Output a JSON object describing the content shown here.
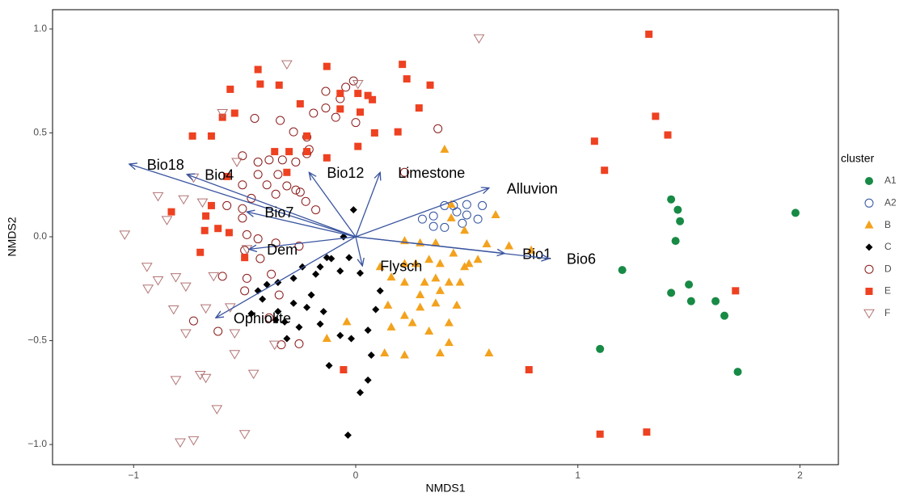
{
  "chart_data": {
    "type": "scatter",
    "xlabel": "NMDS1",
    "ylabel": "NMDS2",
    "legend_title": "cluster",
    "grid": false,
    "xlim": [
      -1.365,
      2.173
    ],
    "ylim": [
      -1.097,
      1.093
    ],
    "xticks": [
      {
        "value": -1,
        "label": "−1"
      },
      0,
      1,
      2
    ],
    "yticks": [
      {
        "value": -1,
        "label": "−1.0"
      },
      {
        "value": -0.5,
        "label": "−0.5"
      },
      {
        "value": 0,
        "label": "0.0"
      },
      {
        "value": 0.5,
        "label": "0.5"
      },
      {
        "value": 1,
        "label": "1.0"
      }
    ],
    "arrow_color": "#3a55a0",
    "arrows": [
      {
        "label": "Bio18",
        "x": -1.02,
        "y": 0.35
      },
      {
        "label": "Bio4",
        "x": -0.76,
        "y": 0.3
      },
      {
        "label": "Bio12",
        "x": -0.21,
        "y": 0.31
      },
      {
        "label": "Limestone",
        "x": 0.11,
        "y": 0.31
      },
      {
        "label": "Alluvion",
        "x": 0.6,
        "y": 0.235
      },
      {
        "label": "Bio7",
        "x": -0.49,
        "y": 0.12
      },
      {
        "label": "Dem",
        "x": -0.48,
        "y": -0.06
      },
      {
        "label": "Bio1",
        "x": 0.67,
        "y": -0.08
      },
      {
        "label": "Bio6",
        "x": 0.87,
        "y": -0.105
      },
      {
        "label": "Flysch",
        "x": 0.03,
        "y": -0.14
      },
      {
        "label": "Ophiolite",
        "x": -0.63,
        "y": -0.39
      }
    ],
    "series": [
      {
        "name": "A1",
        "color": "#178a45",
        "marker": "circle",
        "x": [
          1.42,
          1.45,
          1.46,
          1.44,
          1.5,
          1.42,
          1.51,
          1.62,
          1.66,
          1.72,
          1.2,
          1.1,
          1.98
        ],
        "y": [
          0.18,
          0.13,
          0.075,
          -0.02,
          -0.23,
          -0.27,
          -0.31,
          -0.31,
          -0.38,
          -0.65,
          -0.16,
          -0.54,
          0.115
        ]
      },
      {
        "name": "A2",
        "color": "#2d4f9e",
        "marker": "open-circle",
        "x": [
          0.3,
          0.35,
          0.4,
          0.44,
          0.5,
          0.57,
          0.35,
          0.4,
          0.455,
          0.5,
          0.48,
          0.55
        ],
        "y": [
          0.085,
          0.1,
          0.15,
          0.15,
          0.155,
          0.15,
          0.05,
          0.045,
          0.12,
          0.105,
          0.065,
          0.085
        ]
      },
      {
        "name": "B",
        "color": "#f3a21d",
        "marker": "triangle",
        "x": [
          0.4,
          0.43,
          0.63,
          0.43,
          0.49,
          0.59,
          0.69,
          0.79,
          0.22,
          0.27,
          0.33,
          0.38,
          0.44,
          0.49,
          0.55,
          0.11,
          0.16,
          0.22,
          0.31,
          0.36,
          0.42,
          0.29,
          0.38,
          0.47,
          0.51,
          0.29,
          0.36,
          0.455,
          0.22,
          0.145,
          0.16,
          0.255,
          0.33,
          0.42,
          0.42,
          0.38,
          0.22,
          0.13,
          -0.13,
          -0.04,
          0.6,
          0.29,
          0.22,
          0.36
        ],
        "y": [
          0.42,
          0.155,
          0.105,
          0.09,
          0.03,
          -0.035,
          -0.045,
          -0.065,
          -0.13,
          -0.13,
          -0.11,
          -0.13,
          -0.08,
          -0.145,
          -0.11,
          -0.145,
          -0.195,
          -0.22,
          -0.22,
          -0.2,
          -0.22,
          -0.28,
          -0.26,
          -0.22,
          -0.13,
          -0.34,
          -0.32,
          -0.33,
          -0.38,
          -0.33,
          -0.435,
          -0.415,
          -0.455,
          -0.415,
          -0.51,
          -0.56,
          -0.57,
          -0.56,
          -0.49,
          -0.41,
          -0.56,
          -0.03,
          -0.02,
          -0.03
        ]
      },
      {
        "name": "C",
        "color": "#000000",
        "marker": "diamond",
        "x": [
          -0.01,
          -0.055,
          -0.03,
          0.02,
          -0.07,
          -0.13,
          -0.18,
          -0.16,
          -0.24,
          -0.28,
          -0.35,
          -0.4,
          -0.44,
          -0.42,
          -0.47,
          -0.35,
          -0.32,
          -0.28,
          -0.22,
          -0.2,
          -0.145,
          -0.16,
          -0.255,
          -0.31,
          -0.36,
          -0.07,
          -0.02,
          0.055,
          0.07,
          0.02,
          0.055,
          -0.12,
          -0.035,
          -0.11,
          0.11,
          0.09
        ],
        "y": [
          0.13,
          0.0,
          -0.1,
          -0.175,
          -0.165,
          -0.1,
          -0.18,
          -0.145,
          -0.145,
          -0.2,
          -0.22,
          -0.23,
          -0.26,
          -0.3,
          -0.37,
          -0.36,
          -0.41,
          -0.32,
          -0.34,
          -0.28,
          -0.36,
          -0.42,
          -0.435,
          -0.49,
          -0.4,
          -0.475,
          -0.49,
          -0.45,
          -0.57,
          -0.75,
          -0.69,
          -0.62,
          -0.955,
          -0.105,
          -0.26,
          -0.35
        ]
      },
      {
        "name": "D",
        "color": "#8b1a1a",
        "marker": "open-circle",
        "x": [
          -0.34,
          -0.28,
          -0.22,
          -0.19,
          -0.135,
          -0.135,
          -0.07,
          -0.045,
          -0.01,
          -0.09,
          0.0,
          0.22,
          0.37,
          -0.455,
          -0.51,
          -0.44,
          -0.39,
          -0.33,
          -0.27,
          -0.22,
          -0.44,
          -0.4,
          -0.35,
          -0.31,
          -0.27,
          -0.25,
          -0.225,
          -0.36,
          -0.51,
          -0.47,
          -0.51,
          -0.58,
          -0.51,
          -0.49,
          -0.44,
          -0.36,
          -0.255,
          -0.5,
          -0.49,
          -0.5,
          -0.43,
          -0.38,
          -0.345,
          -0.39,
          -0.335,
          -0.255,
          -0.6,
          -0.73,
          -0.62,
          -0.21,
          -0.18
        ],
        "y": [
          0.56,
          0.505,
          0.48,
          0.595,
          0.7,
          0.62,
          0.665,
          0.72,
          0.75,
          0.575,
          0.55,
          0.31,
          0.52,
          0.57,
          0.39,
          0.36,
          0.37,
          0.37,
          0.36,
          0.4,
          0.3,
          0.25,
          0.3,
          0.245,
          0.225,
          0.215,
          0.17,
          0.205,
          0.25,
          0.185,
          0.135,
          0.15,
          0.09,
          0.01,
          -0.01,
          -0.03,
          -0.045,
          -0.065,
          -0.2,
          -0.26,
          -0.105,
          -0.18,
          -0.28,
          -0.39,
          -0.52,
          -0.515,
          -0.19,
          -0.405,
          -0.455,
          0.42,
          0.13
        ]
      },
      {
        "name": "E",
        "color": "#ee4121",
        "marker": "square",
        "x": [
          -0.44,
          -0.43,
          -0.345,
          -0.13,
          -0.07,
          0.01,
          0.055,
          0.075,
          0.21,
          0.23,
          0.335,
          0.285,
          0.19,
          0.085,
          -0.07,
          0.02,
          -0.25,
          -0.565,
          -0.6,
          -0.545,
          -0.735,
          -0.65,
          -0.365,
          -0.3,
          -0.22,
          -0.31,
          -0.13,
          0.01,
          -0.58,
          -0.65,
          -0.68,
          -0.62,
          -0.57,
          -0.5,
          -0.7,
          -0.83,
          -0.675,
          1.32,
          1.35,
          1.405,
          1.075,
          1.12,
          1.71,
          0.78,
          -0.055,
          1.1,
          1.31,
          -0.22
        ],
        "y": [
          0.805,
          0.735,
          0.73,
          0.82,
          0.69,
          0.69,
          0.68,
          0.66,
          0.83,
          0.76,
          0.73,
          0.62,
          0.505,
          0.5,
          0.615,
          0.6,
          0.64,
          0.71,
          0.575,
          0.595,
          0.485,
          0.485,
          0.41,
          0.41,
          0.41,
          0.31,
          0.38,
          0.435,
          0.29,
          0.15,
          0.03,
          0.04,
          0.02,
          -0.1,
          -0.075,
          0.12,
          0.1,
          0.975,
          0.58,
          0.49,
          0.46,
          0.32,
          -0.26,
          -0.64,
          -0.64,
          -0.95,
          -0.94,
          0.485
        ]
      },
      {
        "name": "F",
        "color": "#b27474",
        "marker": "open-triangle-down",
        "x": [
          0.555,
          -0.31,
          0.01,
          -0.6,
          -0.535,
          -0.73,
          -0.89,
          -0.85,
          -0.775,
          -0.69,
          -1.04,
          -0.94,
          -0.89,
          -0.935,
          -0.81,
          -0.765,
          -0.64,
          -0.82,
          -0.765,
          -0.675,
          -0.565,
          -0.545,
          -0.7,
          -0.675,
          -0.81,
          -0.46,
          -0.625,
          -0.5,
          -0.73,
          -0.79,
          -0.365,
          -0.49,
          -0.545
        ],
        "y": [
          0.955,
          0.83,
          0.735,
          0.595,
          0.36,
          0.285,
          0.195,
          0.08,
          0.18,
          0.165,
          0.01,
          -0.145,
          -0.21,
          -0.25,
          -0.195,
          -0.24,
          -0.19,
          -0.35,
          -0.465,
          -0.345,
          -0.34,
          -0.465,
          -0.665,
          -0.68,
          -0.69,
          -0.66,
          -0.83,
          -0.95,
          -0.98,
          -0.99,
          -0.52,
          -0.06,
          -0.565
        ]
      }
    ]
  }
}
